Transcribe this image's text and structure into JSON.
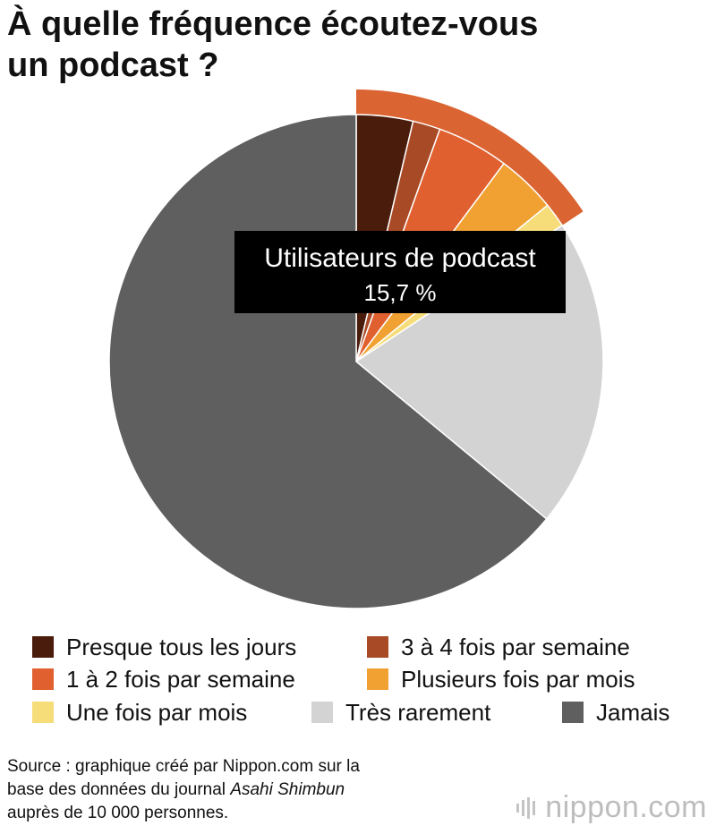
{
  "title": {
    "line1": "À quelle fréquence écoutez-vous",
    "line2": "un podcast ?"
  },
  "chart_data": {
    "type": "pie",
    "title": "À quelle fréquence écoutez-vous un podcast ?",
    "series": [
      {
        "name": "Presque tous les jours",
        "value": 3.7,
        "color": "#4a1c0c"
      },
      {
        "name": "3 à 4 fois par semaine",
        "value": 1.8,
        "color": "#a84a26"
      },
      {
        "name": "1 à 2 fois par semaine",
        "value": 4.7,
        "color": "#e0602f"
      },
      {
        "name": "Plusieurs fois par mois",
        "value": 3.9,
        "color": "#f0a132"
      },
      {
        "name": "Une fois par mois",
        "value": 1.6,
        "color": "#f6dd7a"
      },
      {
        "name": "Très rarement",
        "value": 20.3,
        "color": "#d3d3d3"
      },
      {
        "name": "Jamais",
        "value": 64.0,
        "color": "#5f5f5f"
      }
    ],
    "highlight": {
      "label": "Utilisateurs de podcast",
      "value_text": "15,7 %",
      "value": 15.7,
      "color": "#db6433"
    },
    "legend_placement": "bottom"
  },
  "source": {
    "line1": "Source : graphique créé par Nippon.com sur la",
    "line2_prefix": "base des données du journal ",
    "line2_italic": "Asahi Shimbun",
    "line3": "auprès de 10 000 personnes."
  },
  "logo": {
    "text_main": "nippon",
    "text_suffix": ".com",
    "color": "#bdbdbd"
  }
}
